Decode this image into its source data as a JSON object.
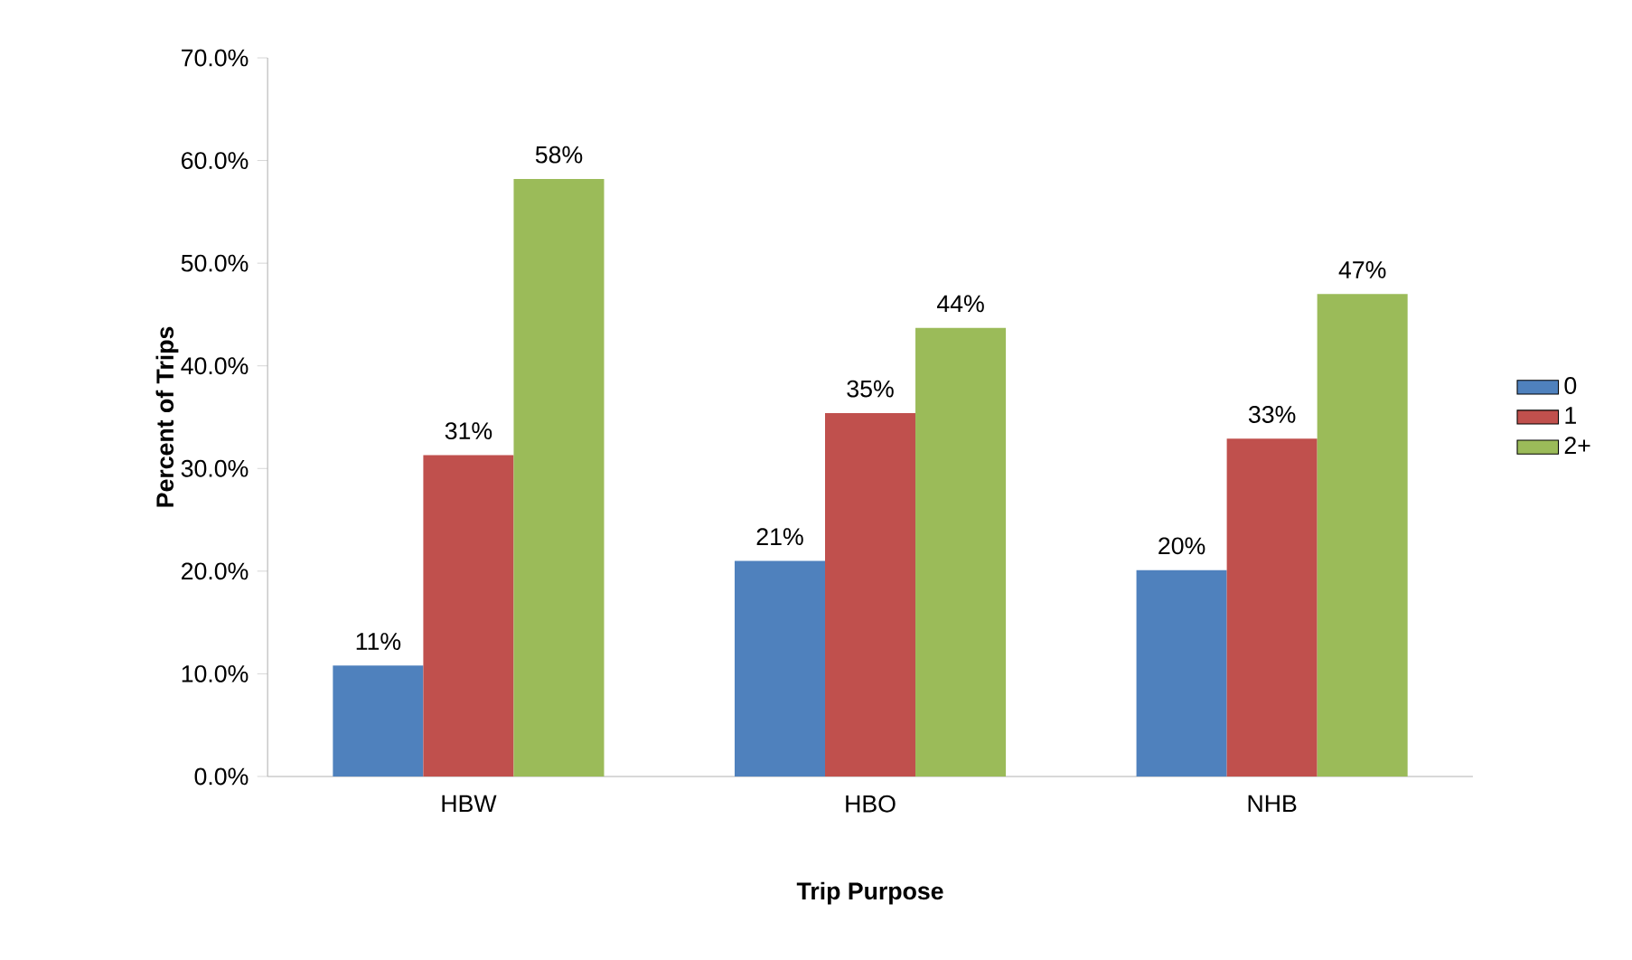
{
  "chart_data": {
    "type": "bar",
    "xlabel": "Trip Purpose",
    "ylabel": "Percent of Trips",
    "categories": [
      "HBW",
      "HBO",
      "NHB"
    ],
    "ylim": [
      0,
      70
    ],
    "yticks": [
      {
        "value": 0,
        "label": "0.0%"
      },
      {
        "value": 10,
        "label": "10.0%"
      },
      {
        "value": 20,
        "label": "20.0%"
      },
      {
        "value": 30,
        "label": "30.0%"
      },
      {
        "value": 40,
        "label": "40.0%"
      },
      {
        "value": 50,
        "label": "50.0%"
      },
      {
        "value": 60,
        "label": "60.0%"
      },
      {
        "value": 70,
        "label": "70.0%"
      }
    ],
    "legend": "right",
    "grid": false,
    "series": [
      {
        "name": "0",
        "color": "#4f81bd",
        "values": [
          10.8,
          21.0,
          20.1
        ],
        "value_labels": [
          "11%",
          "21%",
          "20%"
        ]
      },
      {
        "name": "1",
        "color": "#c0504d",
        "values": [
          31.3,
          35.4,
          32.9
        ],
        "value_labels": [
          "31%",
          "35%",
          "33%"
        ]
      },
      {
        "name": "2+",
        "color": "#9bbb59",
        "values": [
          58.2,
          43.7,
          47.0
        ],
        "value_labels": [
          "58%",
          "44%",
          "47%"
        ]
      }
    ]
  }
}
